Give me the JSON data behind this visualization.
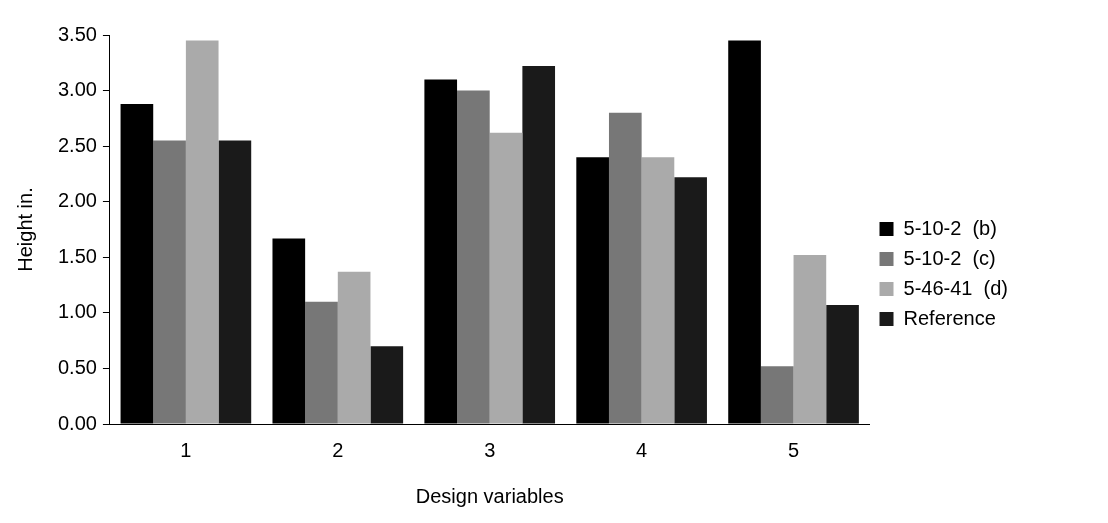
{
  "chart_data": {
    "type": "bar",
    "xlabel": "Design variables",
    "ylabel": "Height in.",
    "categories": [
      "1",
      "2",
      "3",
      "4",
      "5"
    ],
    "series": [
      {
        "name": "5-10-2  (b)",
        "color": "#000000",
        "values": [
          2.88,
          1.67,
          3.1,
          2.4,
          3.45
        ]
      },
      {
        "name": "5-10-2  (c)",
        "color": "#777777",
        "values": [
          2.55,
          1.1,
          3.0,
          2.8,
          0.52
        ]
      },
      {
        "name": "5-46-41  (d)",
        "color": "#aaaaaa",
        "values": [
          3.45,
          1.37,
          2.62,
          2.4,
          1.52
        ]
      },
      {
        "name": "Reference",
        "color": "#1a1a1a",
        "values": [
          2.55,
          0.7,
          3.22,
          2.22,
          1.07
        ]
      }
    ],
    "ylim": [
      0,
      3.5
    ],
    "yticks": [
      {
        "value": 0,
        "label": "0.00"
      },
      {
        "value": 0.5,
        "label": "0.50"
      },
      {
        "value": 1,
        "label": "1.00"
      },
      {
        "value": 1.5,
        "label": "1.50"
      },
      {
        "value": 2,
        "label": "2.00"
      },
      {
        "value": 2.5,
        "label": "2.50"
      },
      {
        "value": 3,
        "label": "3.00"
      },
      {
        "value": 3.5,
        "label": "3.50"
      }
    ],
    "grid": false,
    "legend": "right"
  }
}
